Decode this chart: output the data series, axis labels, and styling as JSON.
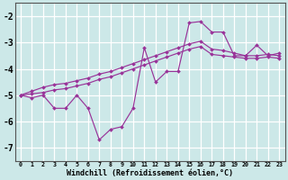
{
  "xlabel": "Windchill (Refroidissement éolien,°C)",
  "x_hours": [
    0,
    1,
    2,
    3,
    4,
    5,
    6,
    7,
    8,
    9,
    10,
    11,
    12,
    13,
    14,
    15,
    16,
    17,
    18,
    19,
    20,
    21,
    22,
    23
  ],
  "line_zigzag": [
    -5.0,
    -5.1,
    -5.0,
    -5.5,
    -5.5,
    -5.0,
    -5.5,
    -6.7,
    -6.3,
    -6.2,
    -5.5,
    -3.2,
    -4.5,
    -4.1,
    -4.1,
    -2.25,
    -2.2,
    -2.6,
    -2.6,
    -3.5,
    -3.5,
    -3.1,
    -3.5,
    -3.4
  ],
  "line_upper": [
    -5.0,
    -4.85,
    -4.7,
    -4.6,
    -4.55,
    -4.45,
    -4.35,
    -4.2,
    -4.1,
    -3.95,
    -3.8,
    -3.65,
    -3.5,
    -3.35,
    -3.2,
    -3.05,
    -2.95,
    -3.25,
    -3.3,
    -3.4,
    -3.5,
    -3.5,
    -3.45,
    -3.5
  ],
  "line_lower": [
    -5.0,
    -4.95,
    -4.9,
    -4.8,
    -4.75,
    -4.65,
    -4.55,
    -4.4,
    -4.3,
    -4.15,
    -4.0,
    -3.85,
    -3.7,
    -3.55,
    -3.4,
    -3.25,
    -3.15,
    -3.45,
    -3.5,
    -3.55,
    -3.6,
    -3.6,
    -3.55,
    -3.6
  ],
  "color": "#993399",
  "bg_color": "#cce8e8",
  "grid_color": "#b0d8d8",
  "ylim": [
    -7.5,
    -1.5
  ],
  "yticks": [
    -7,
    -6,
    -5,
    -4,
    -3,
    -2
  ],
  "xlim": [
    -0.5,
    23.5
  ]
}
